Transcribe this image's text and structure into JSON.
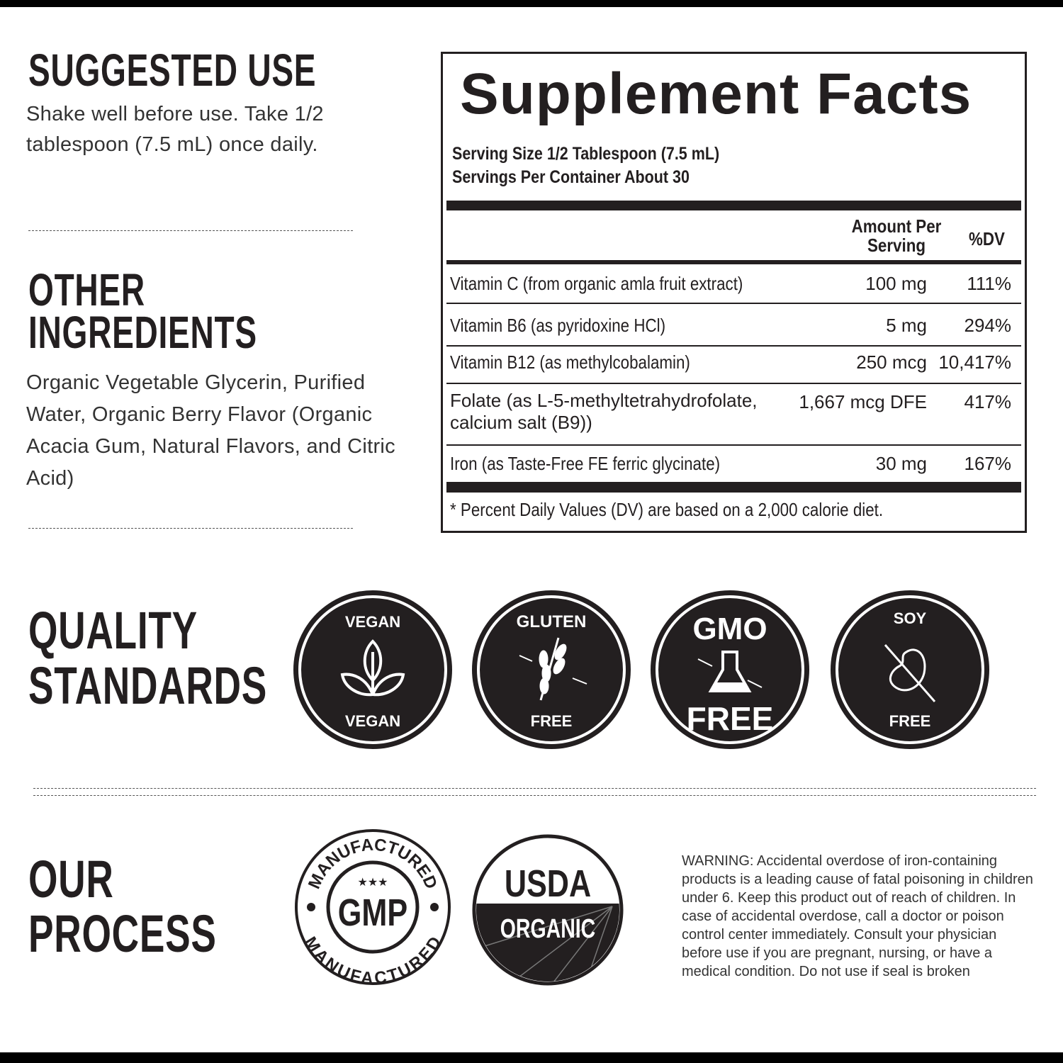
{
  "suggested_use": {
    "title": "SUGGESTED USE",
    "text": "Shake well before use. Take 1/2 tablespoon (7.5 mL) once daily."
  },
  "other_ingredients": {
    "title_line1": "OTHER",
    "title_line2": "INGREDIENTS",
    "text": "Organic Vegetable Glycerin, Purified Water, Organic Berry Flavor (Organic Acacia Gum, Natural Flavors, and Citric Acid)"
  },
  "supplement_facts": {
    "title": "Supplement Facts",
    "serving_size": "Serving Size 1/2 Tablespoon (7.5 mL)",
    "servings_per_container": "Servings Per Container About 30",
    "col_amount_line1": "Amount Per",
    "col_amount_line2": "Serving",
    "col_dv": "%DV",
    "rows": [
      {
        "name": "Vitamin C (from organic amla fruit extract)",
        "amount": "100 mg",
        "dv": "111%"
      },
      {
        "name": "Vitamin B6 (as pyridoxine HCl)",
        "amount": "5 mg",
        "dv": "294%"
      },
      {
        "name": "Vitamin B12 (as methylcobalamin)",
        "amount": "250 mcg",
        "dv": "10,417%"
      },
      {
        "name": "Folate (as L-5-methyltetrahydrofolate, calcium salt (B9))",
        "amount": "1,667 mcg DFE",
        "dv": "417%"
      },
      {
        "name": "Iron (as Taste-Free FE ferric glycinate)",
        "amount": "30 mg",
        "dv": "167%"
      }
    ],
    "footnote": "* Percent Daily Values (DV) are based on a 2,000 calorie diet."
  },
  "quality_standards": {
    "title_line1": "QUALITY",
    "title_line2": "STANDARDS",
    "badges": [
      {
        "top": "VEGAN",
        "bottom": "VEGAN",
        "icon": "leaf-icon"
      },
      {
        "top": "GLUTEN",
        "bottom": "FREE",
        "icon": "wheat-icon"
      },
      {
        "top": "GMO",
        "bottom": "FREE",
        "icon": "flask-icon"
      },
      {
        "top": "SOY",
        "bottom": "FREE",
        "icon": "crossed-bean-icon"
      }
    ]
  },
  "our_process": {
    "title_line1": "OUR",
    "title_line2": "PROCESS",
    "gmp": {
      "top": "MANUFACTURED",
      "center": "GMP",
      "bottom": "MANUFACTURED",
      "stars": "★★★"
    },
    "usda": {
      "top": "USDA",
      "bottom": "ORGANIC"
    }
  },
  "warning": "WARNING: Accidental overdose of iron-containing products is a leading cause of fatal poisoning in children under 6. Keep this product out of reach of children. In case of accidental overdose, call a doctor or poison control center immediately. Consult your physician before use if you are pregnant, nursing, or have a medical condition. Do not use if seal is broken",
  "colors": {
    "ink": "#231f20",
    "background": "#ffffff"
  }
}
